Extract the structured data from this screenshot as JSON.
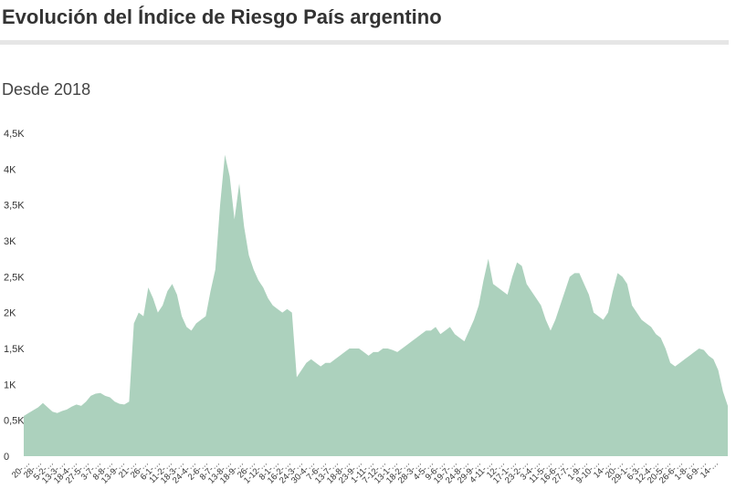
{
  "header": {
    "title": "Evolución del Índice de Riesgo País argentino",
    "subtitle": "Desde 2018"
  },
  "chart_data": {
    "type": "area",
    "title": "Evolución del Índice de Riesgo País argentino",
    "subtitle": "Desde 2018",
    "xlabel": "",
    "ylabel": "",
    "ylim": [
      0,
      4500
    ],
    "yticks": [
      0,
      500,
      1000,
      1500,
      2000,
      2500,
      3000,
      3500,
      4000,
      4500
    ],
    "ytick_labels": [
      "0",
      "0,5K",
      "1K",
      "1,5K",
      "2K",
      "2,5K",
      "3K",
      "3,5K",
      "4K",
      "4,5K"
    ],
    "xtick_labels": [
      "20-…",
      "28-…",
      "5-2-…",
      "13-3-…",
      "18-4-…",
      "27-5-…",
      "3-7-…",
      "8-8-…",
      "13-9-…",
      "21-…",
      "26-…",
      "6-1-…",
      "11-2-…",
      "18-3-…",
      "24-4-…",
      "2-6-…",
      "8-7-…",
      "13-8-…",
      "18-9-…",
      "26-…",
      "1-12-…",
      "8-1-…",
      "16-2-…",
      "24-3-…",
      "30-4-…",
      "7-6-…",
      "13-7-…",
      "18-8-…",
      "23-9-…",
      "1-11-…",
      "7-12-…",
      "13-1-…",
      "18-2-…",
      "28-3-…",
      "4-5-…",
      "9-6-…",
      "19-7-…",
      "24-8-…",
      "29-9-…",
      "4-11-…",
      "12-…",
      "17-1-…",
      "23-2-…",
      "3-4-…",
      "11-5-…",
      "16-6-…",
      "27-7-…",
      "1-9-…",
      "9-10-…",
      "14-…",
      "20-…",
      "29-1-…",
      "6-3-…",
      "12-4-…",
      "20-5-…",
      "26-6-…",
      "1-8-…",
      "6-9-…",
      "14-…"
    ],
    "color": "#acd1bd",
    "grid": false,
    "legend": "none",
    "values": [
      560,
      600,
      640,
      680,
      740,
      680,
      620,
      600,
      630,
      650,
      690,
      720,
      700,
      760,
      840,
      870,
      880,
      840,
      820,
      760,
      730,
      720,
      760,
      1850,
      2000,
      1950,
      2350,
      2200,
      2000,
      2100,
      2300,
      2400,
      2250,
      1950,
      1800,
      1750,
      1850,
      1900,
      1950,
      2300,
      2600,
      3500,
      4200,
      3900,
      3300,
      3800,
      3200,
      2800,
      2600,
      2450,
      2350,
      2200,
      2100,
      2050,
      2000,
      2050,
      2000,
      1100,
      1200,
      1300,
      1350,
      1300,
      1250,
      1300,
      1300,
      1350,
      1400,
      1450,
      1500,
      1500,
      1500,
      1450,
      1400,
      1450,
      1450,
      1500,
      1500,
      1480,
      1450,
      1500,
      1550,
      1600,
      1650,
      1700,
      1750,
      1750,
      1800,
      1700,
      1750,
      1800,
      1700,
      1650,
      1600,
      1750,
      1900,
      2100,
      2450,
      2750,
      2400,
      2350,
      2300,
      2250,
      2500,
      2700,
      2650,
      2400,
      2300,
      2200,
      2100,
      1900,
      1750,
      1900,
      2100,
      2300,
      2500,
      2550,
      2550,
      2400,
      2250,
      2000,
      1950,
      1900,
      2000,
      2300,
      2550,
      2500,
      2400,
      2100,
      2000,
      1900,
      1850,
      1800,
      1700,
      1650,
      1500,
      1300,
      1250,
      1300,
      1350,
      1400,
      1450,
      1500,
      1480,
      1400,
      1350,
      1200,
      900,
      700
    ]
  }
}
